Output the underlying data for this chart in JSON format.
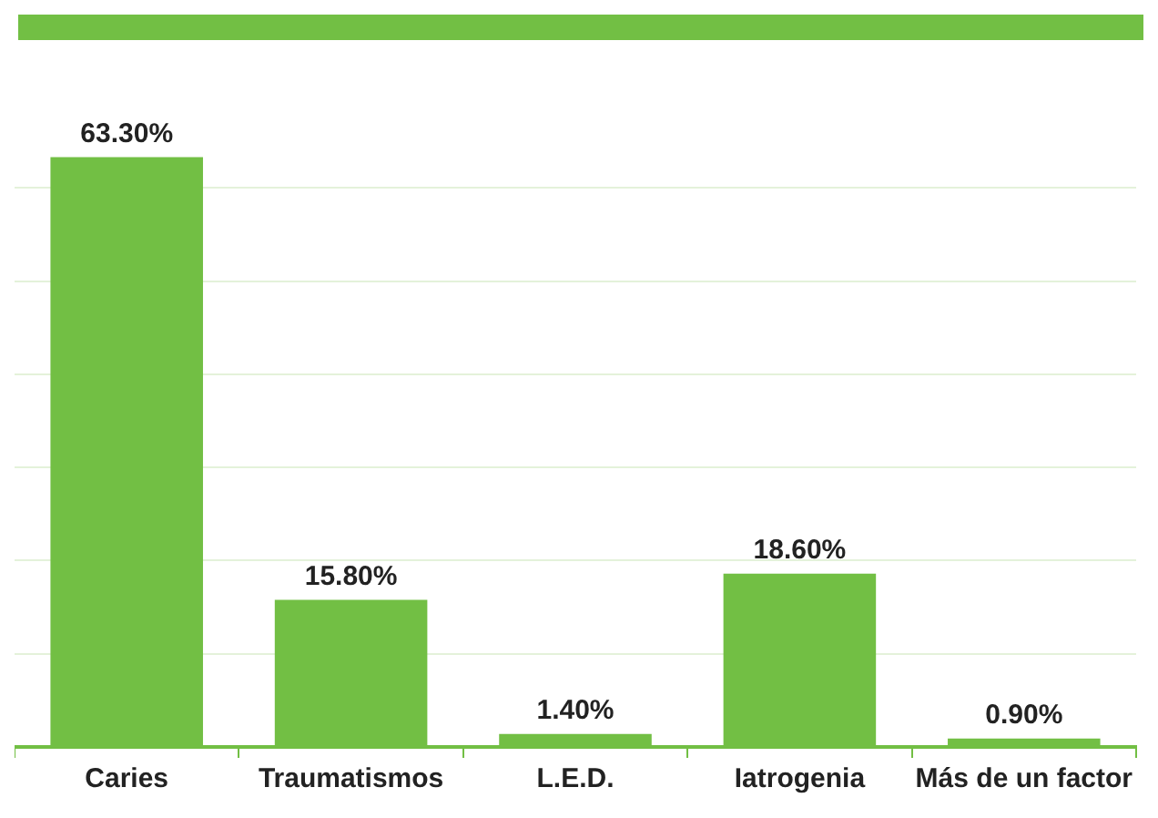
{
  "chart_data": {
    "type": "bar",
    "categories": [
      "Caries",
      "Traumatismos",
      "L.E.D.",
      "Iatrogenia",
      "Más de un factor"
    ],
    "values": [
      63.3,
      15.8,
      1.4,
      18.6,
      0.9
    ],
    "value_labels": [
      "63.30%",
      "15.80%",
      "1.40%",
      "18.60%",
      "0.90%"
    ],
    "color": "#72bf44",
    "yticks": [
      {
        "value": 0,
        "label": null
      },
      {
        "value": 10,
        "label": null
      },
      {
        "value": 20,
        "label": null
      },
      {
        "value": 30,
        "label": null
      },
      {
        "value": 40,
        "label": null
      },
      {
        "value": 50,
        "label": null
      },
      {
        "value": 60,
        "label": null
      }
    ],
    "grid": "y",
    "tick_labels": "x",
    "legend": false
  }
}
